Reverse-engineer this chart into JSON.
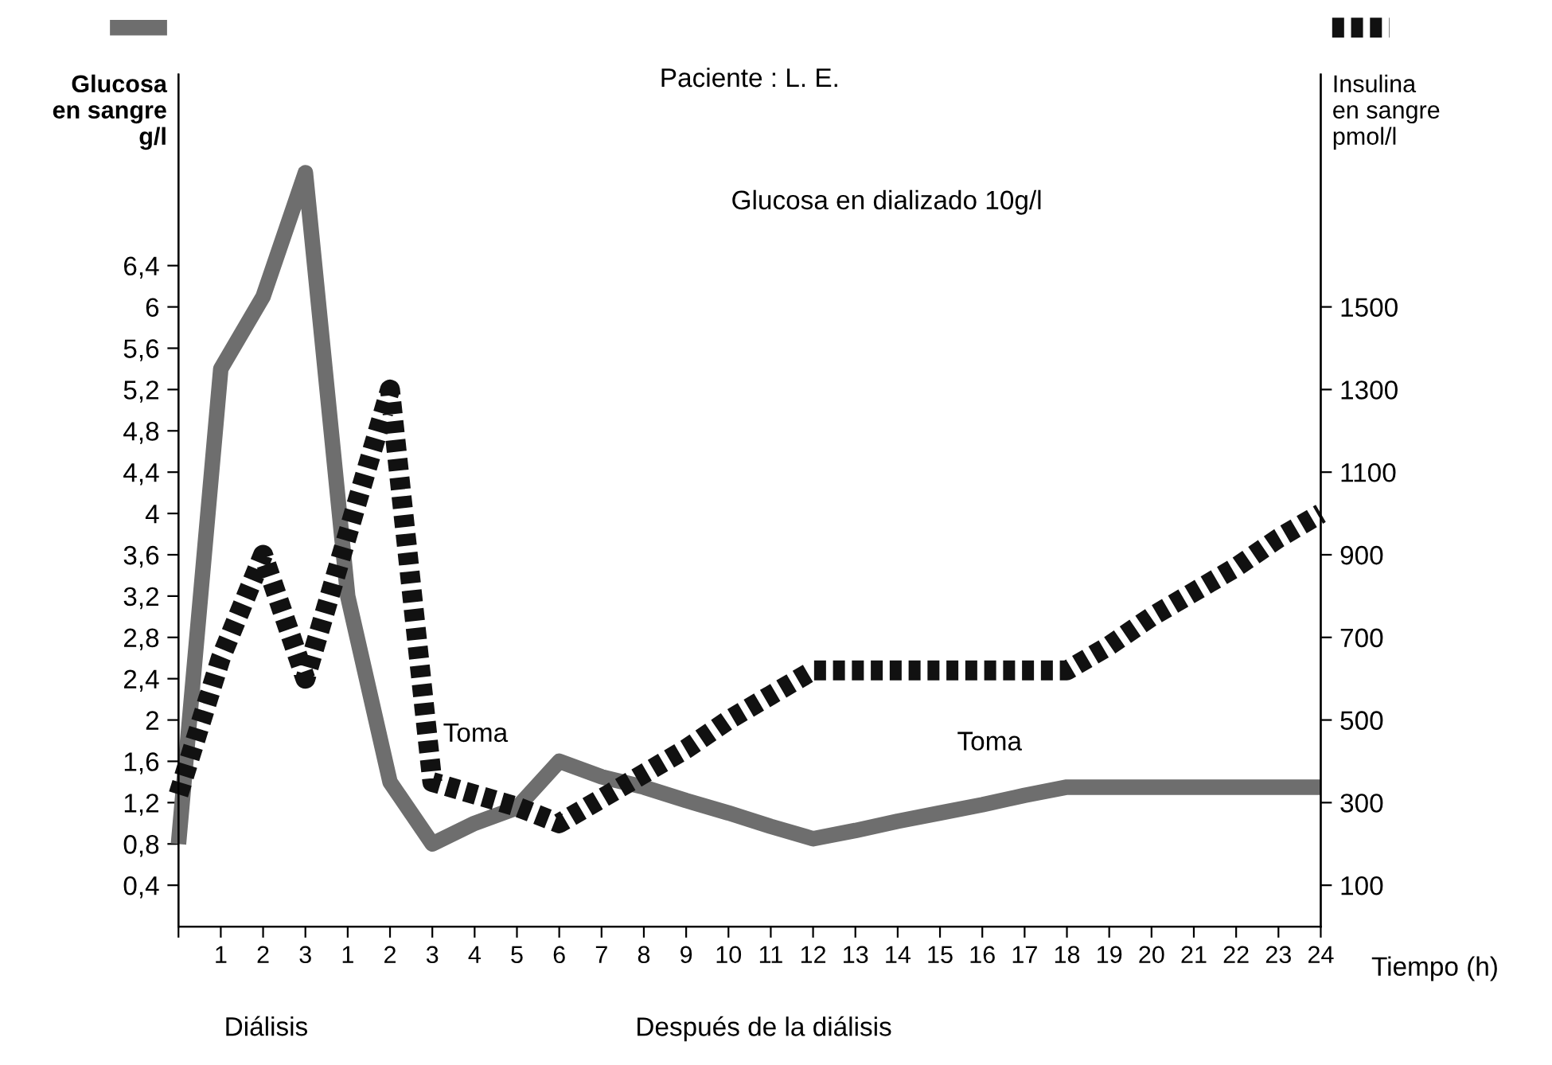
{
  "chart_data": {
    "type": "line",
    "title": "Paciente : L. E.",
    "xlabel": "Tiempo (h)",
    "ylabel": "Glucosa\nen sangre\ng/l",
    "y2label": "Insulina\nen sangre\npmol/l",
    "categories": [
      null,
      "1",
      "2",
      "3",
      "1",
      "2",
      "3",
      "4",
      "5",
      "6",
      "7",
      "8",
      "9",
      "10",
      "11",
      "12",
      "13",
      "14",
      "15",
      "16",
      "17",
      "18",
      "19",
      "20",
      "21",
      "22",
      "23",
      "24"
    ],
    "series": [
      {
        "color": "#6e6e6e",
        "line_style": "solid",
        "values": [
          0.8,
          5.4,
          6.1,
          7.3,
          3.2,
          1.4,
          0.8,
          1.0,
          1.15,
          1.6,
          1.45,
          1.35,
          1.22,
          1.1,
          0.97,
          0.85,
          0.93,
          1.02,
          1.1,
          1.18,
          1.27,
          1.35,
          1.35,
          1.35,
          1.35,
          1.35,
          1.35,
          1.35
        ]
      },
      {
        "color": "#111111",
        "line_style": "dotted",
        "axis": "y2",
        "values": [
          320,
          650,
          900,
          600,
          950,
          1300,
          350,
          320,
          290,
          250,
          310,
          370,
          430,
          500,
          560,
          620,
          620,
          620,
          620,
          620,
          620,
          620,
          680,
          750,
          810,
          870,
          940,
          1000
        ]
      }
    ],
    "ylim": [
      0,
      8.25
    ],
    "yticks": [
      {
        "value": 0.4,
        "label": "0,4"
      },
      {
        "value": 0.8,
        "label": "0,8"
      },
      {
        "value": 1.2,
        "label": "1,2"
      },
      {
        "value": 1.6,
        "label": "1,6"
      },
      {
        "value": 2,
        "label": "2"
      },
      {
        "value": 2.4,
        "label": "2,4"
      },
      {
        "value": 2.8,
        "label": "2,8"
      },
      {
        "value": 3.2,
        "label": "3,2"
      },
      {
        "value": 3.6,
        "label": "3,6"
      },
      {
        "value": 4,
        "label": "4"
      },
      {
        "value": 4.4,
        "label": "4,4"
      },
      {
        "value": 4.8,
        "label": "4,8"
      },
      {
        "value": 5.2,
        "label": "5,2"
      },
      {
        "value": 5.6,
        "label": "5,6"
      },
      {
        "value": 6,
        "label": "6"
      },
      {
        "value": 6.4,
        "label": "6,4"
      }
    ],
    "y2lim": [
      0,
      2062.5
    ],
    "y2ticks": [
      100,
      300,
      500,
      700,
      900,
      1100,
      1300,
      1500
    ],
    "grid": false,
    "marker": "none",
    "annotations": [
      "Glucosa en dializado 10g/l",
      "Toma",
      "Toma",
      "Diálisis",
      "Después de la diálisis"
    ]
  }
}
